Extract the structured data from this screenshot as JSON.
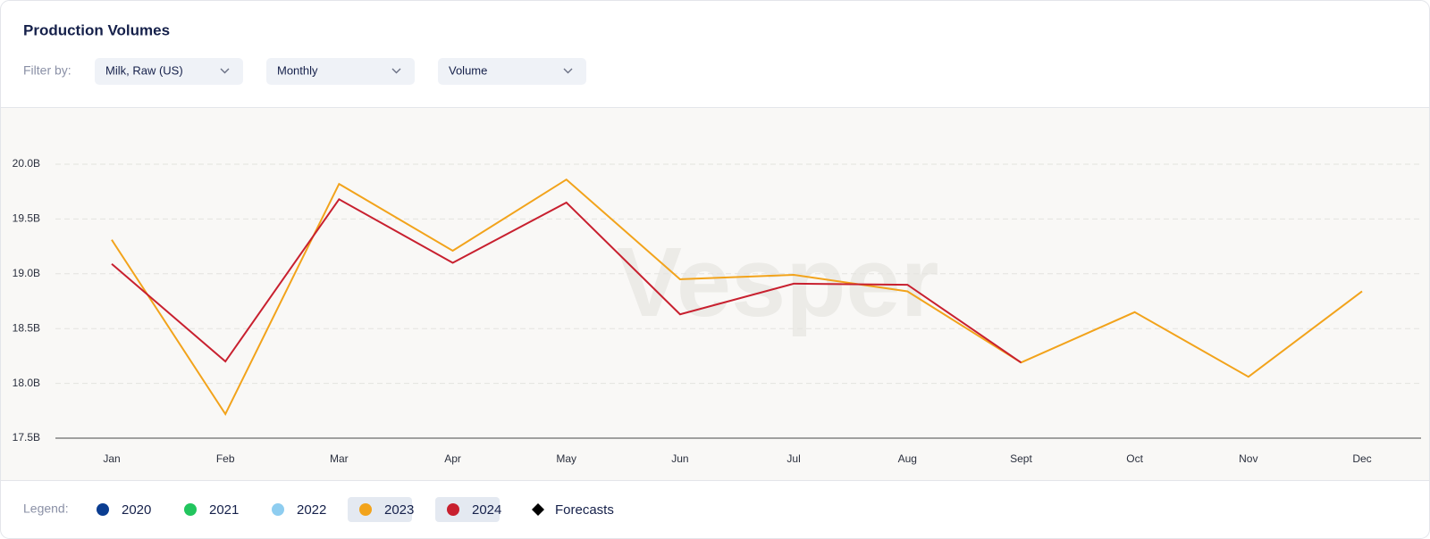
{
  "chart_data": {
    "type": "line",
    "title": "Production Volumes",
    "filter_label": "Filter by:",
    "filters": [
      "Milk, Raw (US)",
      "Monthly",
      "Volume"
    ],
    "watermark": "Vesper",
    "categories": [
      "Jan",
      "Feb",
      "Mar",
      "Apr",
      "May",
      "Jun",
      "Jul",
      "Aug",
      "Sept",
      "Oct",
      "Nov",
      "Dec"
    ],
    "series": [
      {
        "name": "2020",
        "color": "#0b3d91",
        "active": false,
        "values": [
          null,
          null,
          null,
          null,
          null,
          null,
          null,
          null,
          null,
          null,
          null,
          null
        ]
      },
      {
        "name": "2021",
        "color": "#22c55e",
        "active": false,
        "values": [
          null,
          null,
          null,
          null,
          null,
          null,
          null,
          null,
          null,
          null,
          null,
          null
        ]
      },
      {
        "name": "2022",
        "color": "#8ecdf0",
        "active": false,
        "values": [
          null,
          null,
          null,
          null,
          null,
          null,
          null,
          null,
          null,
          null,
          null,
          null
        ]
      },
      {
        "name": "2023",
        "color": "#f2a31b",
        "active": true,
        "values": [
          19.31,
          17.72,
          19.82,
          19.21,
          19.86,
          18.95,
          18.99,
          18.84,
          18.19,
          18.65,
          18.06,
          18.84
        ]
      },
      {
        "name": "2024",
        "color": "#c8202f",
        "active": true,
        "values": [
          19.09,
          18.2,
          19.68,
          19.1,
          19.65,
          18.63,
          18.91,
          18.9,
          18.19,
          null,
          null,
          null
        ]
      }
    ],
    "legend_label": "Legend:",
    "forecast_legend": "Forecasts",
    "ylim": [
      17.5,
      20.0
    ],
    "yticks": [
      {
        "value": 17.5,
        "label": "17.5B"
      },
      {
        "value": 18,
        "label": "18.0B"
      },
      {
        "value": 18.5,
        "label": "18.5B"
      },
      {
        "value": 19,
        "label": "19.0B"
      },
      {
        "value": 19.5,
        "label": "19.5B"
      },
      {
        "value": 20,
        "label": "20.0B"
      }
    ],
    "grid": true
  }
}
